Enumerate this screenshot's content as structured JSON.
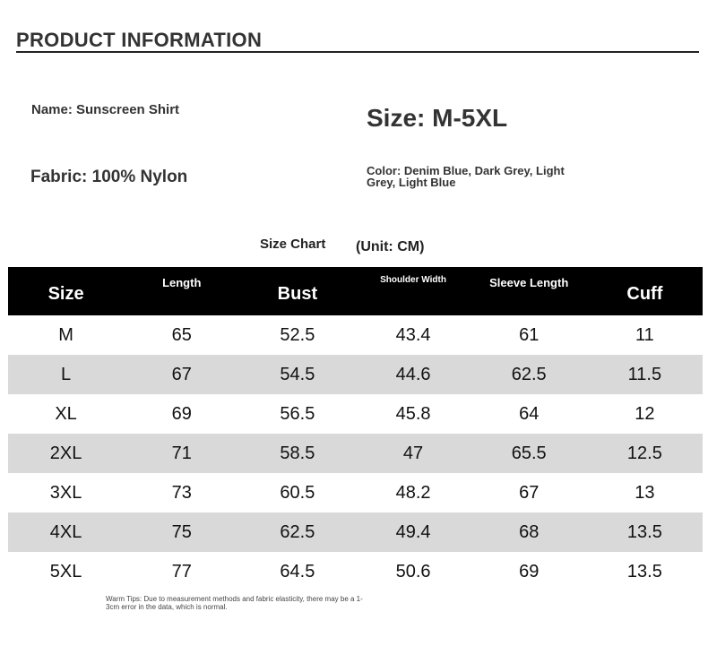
{
  "header": {
    "title": "PRODUCT INFORMATION"
  },
  "info": {
    "name": "Name: Sunscreen Shirt",
    "size": "Size: M-5XL",
    "fabric": "Fabric: 100% Nylon",
    "color": "Color: Denim Blue, Dark Grey, Light Grey, Light Blue"
  },
  "table": {
    "title": "Size Chart",
    "unit": "(Unit: CM)",
    "columns": [
      "Size",
      "Length",
      "Bust",
      "Shoulder Width",
      "Sleeve Length",
      "Cuff"
    ],
    "rows": [
      [
        "M",
        "65",
        "52.5",
        "43.4",
        "61",
        "11"
      ],
      [
        "L",
        "67",
        "54.5",
        "44.6",
        "62.5",
        "11.5"
      ],
      [
        "XL",
        "69",
        "56.5",
        "45.8",
        "64",
        "12"
      ],
      [
        "2XL",
        "71",
        "58.5",
        "47",
        "65.5",
        "12.5"
      ],
      [
        "3XL",
        "73",
        "60.5",
        "48.2",
        "67",
        "13"
      ],
      [
        "4XL",
        "75",
        "62.5",
        "49.4",
        "68",
        "13.5"
      ],
      [
        "5XL",
        "77",
        "64.5",
        "50.6",
        "69",
        "13.5"
      ]
    ]
  },
  "footer": {
    "tips": "Warm Tips: Due to measurement methods and fabric elasticity, there may be a 1-3cm error in the data, which is normal."
  }
}
